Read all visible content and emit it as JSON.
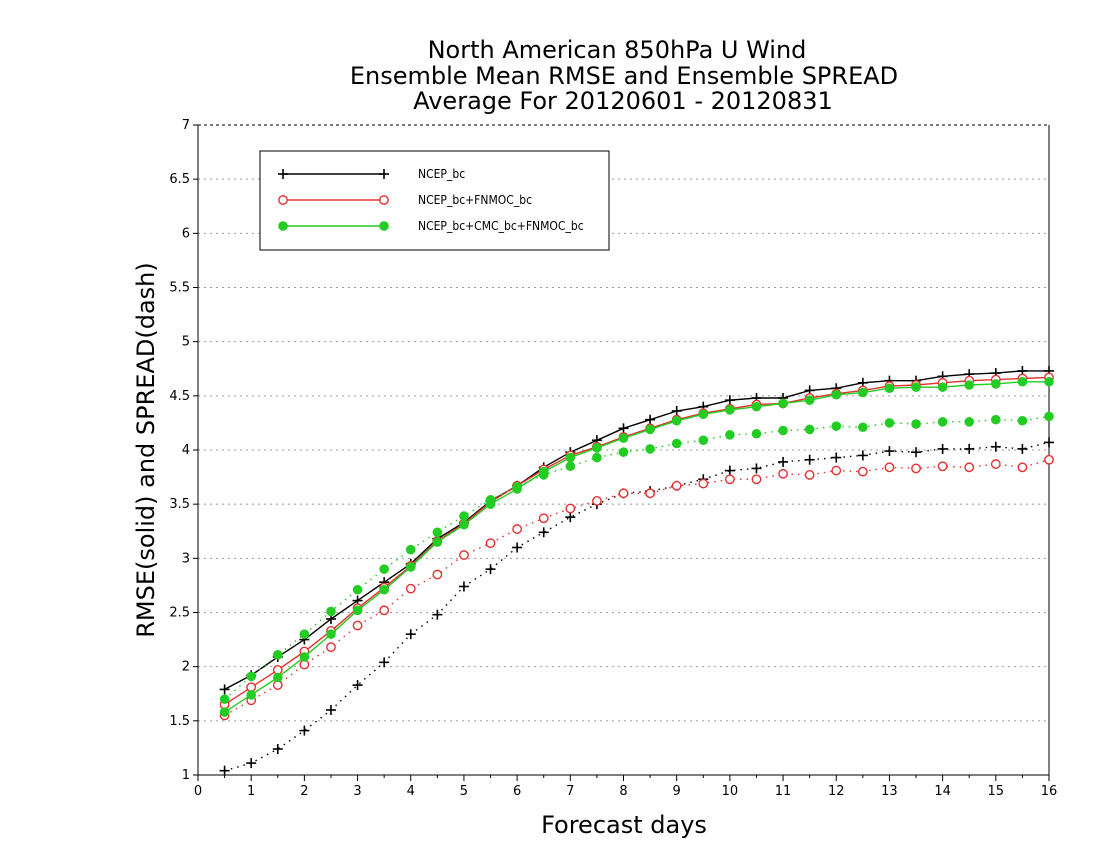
{
  "chart_data": {
    "type": "line",
    "title": [
      "North American 850hPa U Wind",
      "Ensemble Mean RMSE and Ensemble SPREAD",
      "Average For 20120601 - 20120831"
    ],
    "xlabel": "Forecast days",
    "ylabel": "RMSE(solid) and SPREAD(dash)",
    "xlim": [
      0,
      16
    ],
    "ylim": [
      1,
      7
    ],
    "xticks": [
      "0",
      "1",
      "2",
      "3",
      "4",
      "5",
      "6",
      "7",
      "8",
      "9",
      "10",
      "11",
      "12",
      "13",
      "14",
      "15",
      "16"
    ],
    "yticks": [
      "1",
      "1.5",
      "2",
      "2.5",
      "3",
      "3.5",
      "4",
      "4.5",
      "5",
      "5.5",
      "6",
      "6.5",
      "7"
    ],
    "grid": true,
    "legend_position": "top-left",
    "x": [
      0.5,
      1,
      1.5,
      2,
      2.5,
      3,
      3.5,
      4,
      4.5,
      5,
      5.5,
      6,
      6.5,
      7,
      7.5,
      8,
      8.5,
      9,
      9.5,
      10,
      10.5,
      11,
      11.5,
      12,
      12.5,
      13,
      13.5,
      14,
      14.5,
      15,
      15.5,
      16
    ],
    "series": [
      {
        "name": "NCEP_bc",
        "color": "#000000",
        "marker": "plus",
        "rmse": [
          1.79,
          1.92,
          2.09,
          2.25,
          2.44,
          2.61,
          2.78,
          2.95,
          3.18,
          3.33,
          3.53,
          3.67,
          3.84,
          3.98,
          4.09,
          4.2,
          4.28,
          4.36,
          4.4,
          4.46,
          4.48,
          4.48,
          4.55,
          4.57,
          4.62,
          4.64,
          4.64,
          4.68,
          4.7,
          4.71,
          4.73,
          4.73
        ],
        "spread": [
          1.04,
          1.11,
          1.24,
          1.41,
          1.6,
          1.83,
          2.04,
          2.3,
          2.48,
          2.74,
          2.9,
          3.1,
          3.24,
          3.38,
          3.5,
          3.6,
          3.62,
          3.67,
          3.73,
          3.81,
          3.83,
          3.89,
          3.91,
          3.93,
          3.95,
          3.99,
          3.98,
          4.01,
          4.01,
          4.03,
          4.01,
          4.07
        ]
      },
      {
        "name": "NCEP_bc+FNMOC_bc",
        "color": "#e53030",
        "marker": "open-circle",
        "rmse": [
          1.65,
          1.81,
          1.97,
          2.14,
          2.33,
          2.54,
          2.73,
          2.93,
          3.16,
          3.32,
          3.52,
          3.67,
          3.82,
          3.95,
          4.03,
          4.12,
          4.2,
          4.28,
          4.34,
          4.38,
          4.42,
          4.43,
          4.48,
          4.52,
          4.55,
          4.59,
          4.6,
          4.62,
          4.64,
          4.65,
          4.66,
          4.67
        ],
        "spread": [
          1.55,
          1.69,
          1.83,
          2.02,
          2.18,
          2.38,
          2.52,
          2.72,
          2.85,
          3.03,
          3.14,
          3.27,
          3.37,
          3.46,
          3.53,
          3.6,
          3.6,
          3.67,
          3.69,
          3.73,
          3.73,
          3.78,
          3.77,
          3.81,
          3.8,
          3.84,
          3.83,
          3.85,
          3.84,
          3.87,
          3.84,
          3.91
        ]
      },
      {
        "name": "NCEP_bc+CMC_bc+FNMOC_bc",
        "color": "#22cc22",
        "marker": "filled-circle",
        "rmse": [
          1.58,
          1.74,
          1.9,
          2.09,
          2.3,
          2.52,
          2.71,
          2.92,
          3.15,
          3.31,
          3.5,
          3.64,
          3.8,
          3.93,
          4.02,
          4.11,
          4.19,
          4.27,
          4.33,
          4.37,
          4.4,
          4.43,
          4.46,
          4.51,
          4.53,
          4.57,
          4.58,
          4.58,
          4.6,
          4.61,
          4.63,
          4.63
        ],
        "spread": [
          1.7,
          1.91,
          2.11,
          2.3,
          2.51,
          2.71,
          2.9,
          3.08,
          3.24,
          3.39,
          3.54,
          3.66,
          3.77,
          3.85,
          3.93,
          3.98,
          4.01,
          4.06,
          4.09,
          4.14,
          4.15,
          4.18,
          4.19,
          4.22,
          4.21,
          4.25,
          4.24,
          4.26,
          4.26,
          4.28,
          4.27,
          4.31
        ]
      }
    ]
  }
}
